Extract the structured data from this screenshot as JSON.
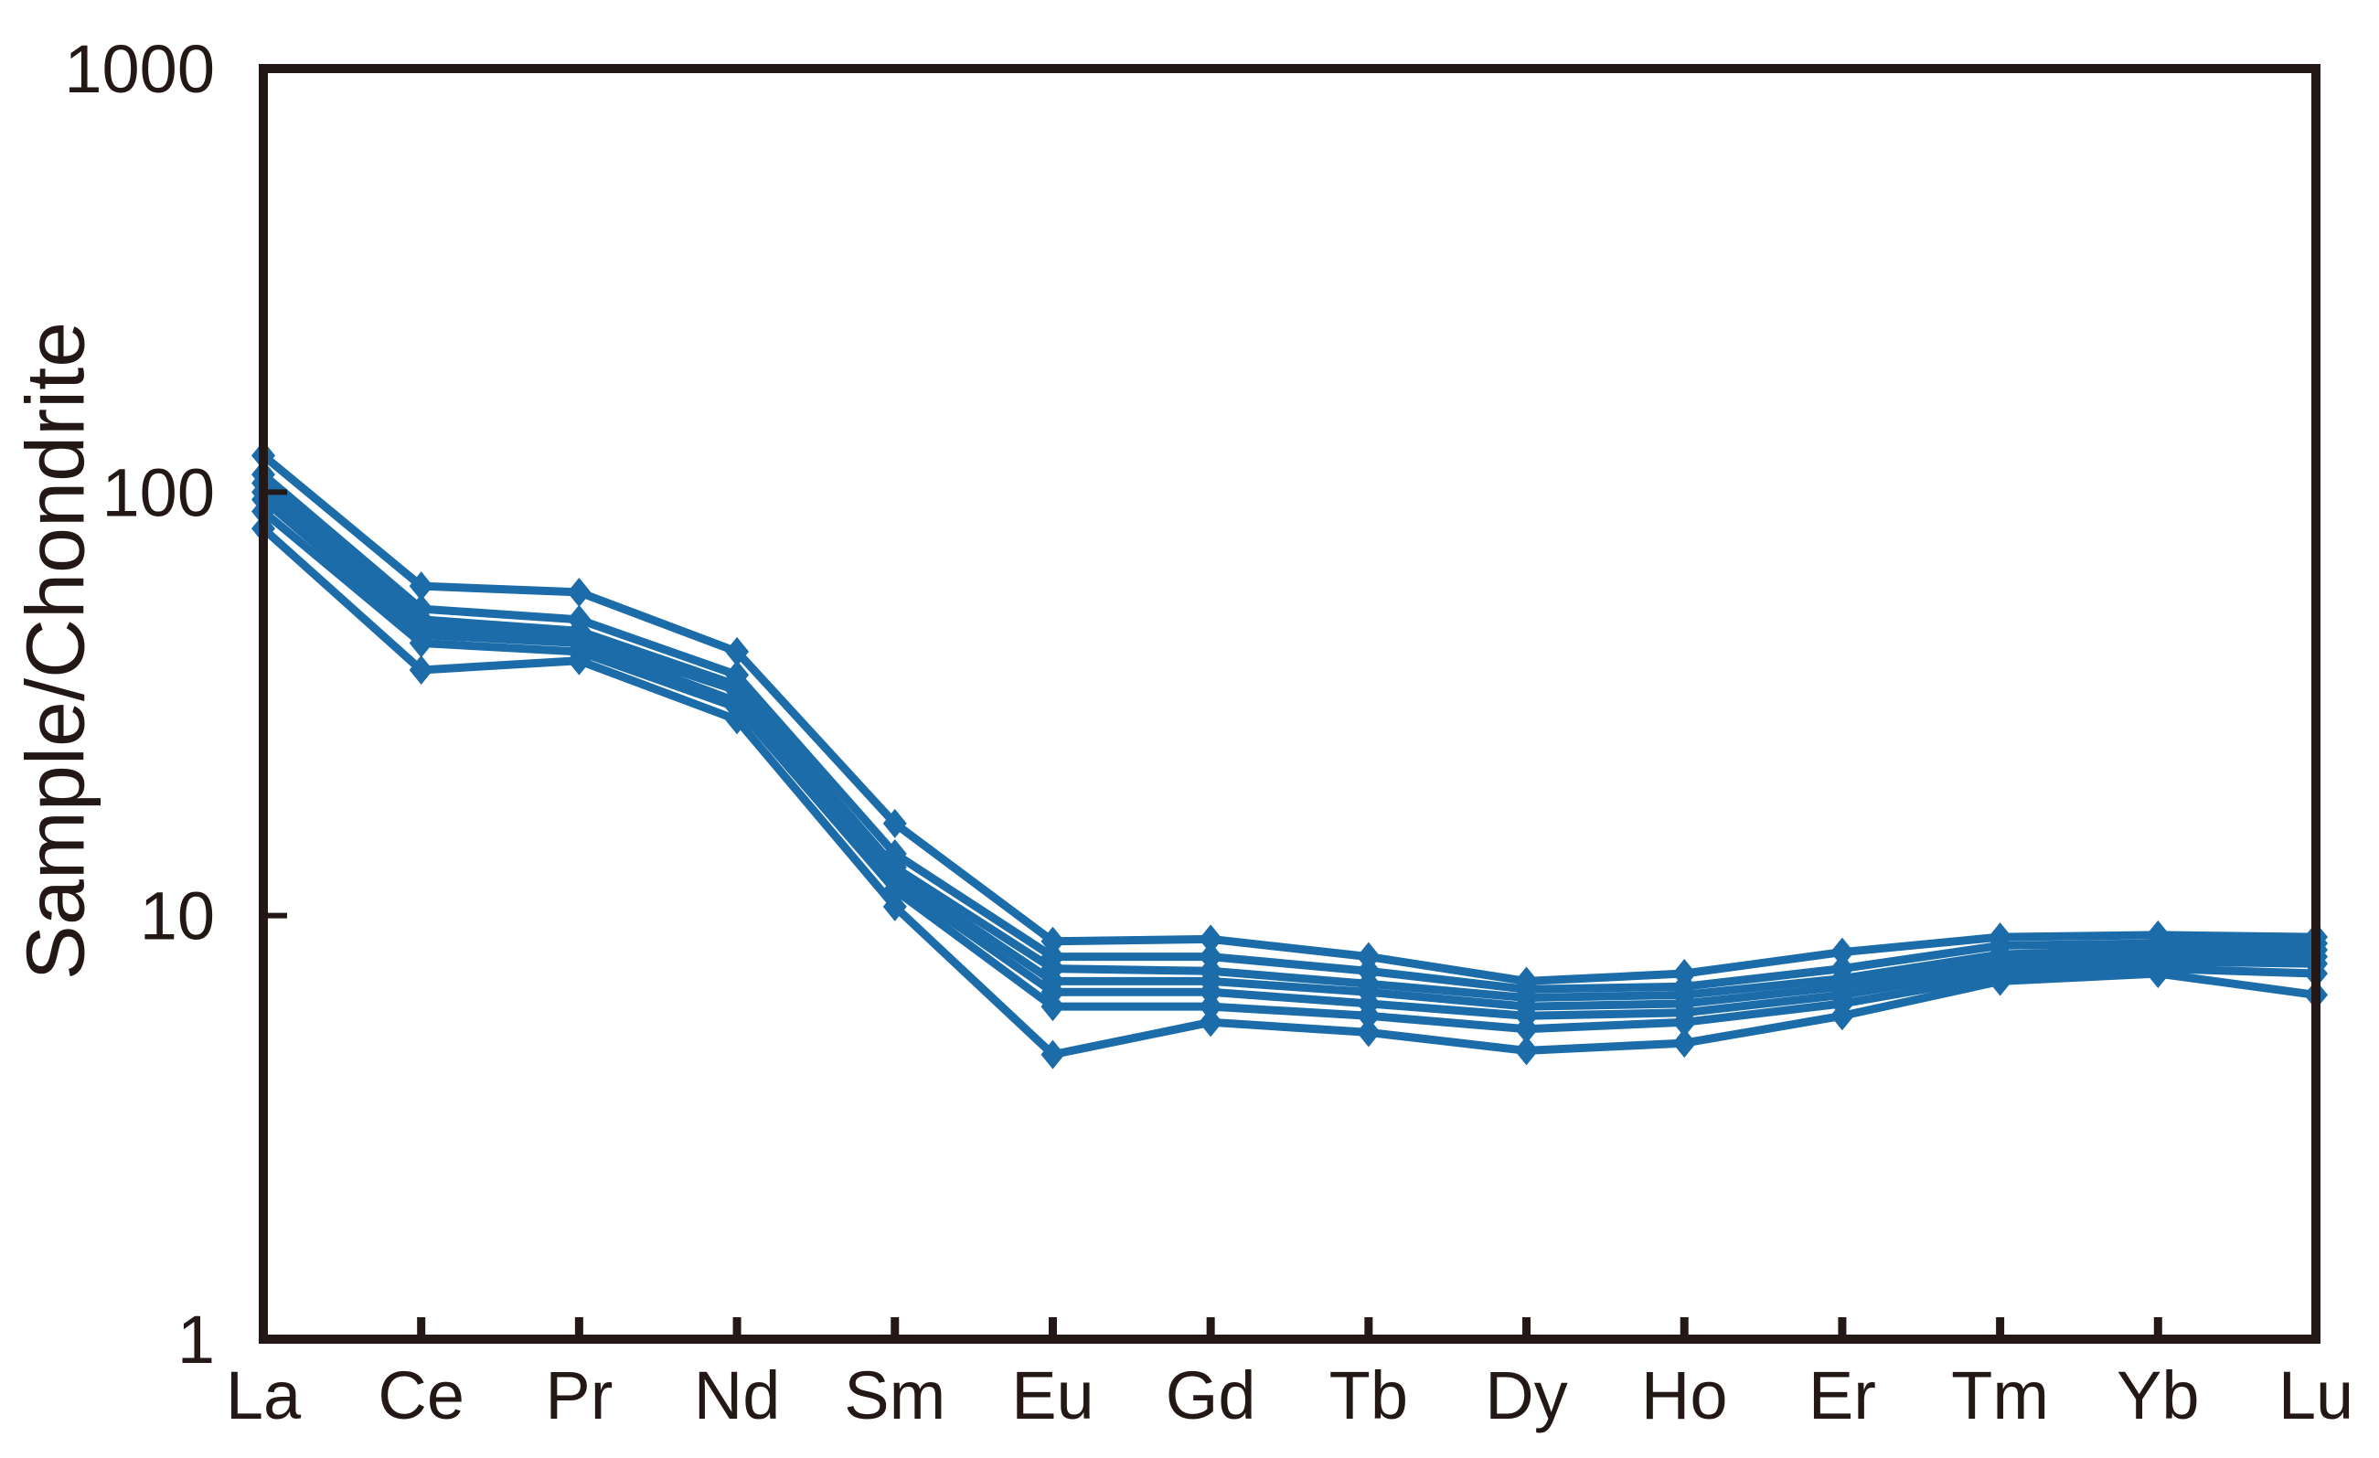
{
  "figure": {
    "background": "#ffffff"
  },
  "chart_data": {
    "type": "line",
    "title": "",
    "xlabel": "",
    "ylabel": "Sample/Chondrite",
    "yscale": "log",
    "ylim": [
      1,
      1000
    ],
    "grid": false,
    "legend_position": "none",
    "y_ticks": [
      1000,
      100,
      10,
      1
    ],
    "y_tick_labels": [
      "1000",
      "100",
      "10",
      "1"
    ],
    "categories": [
      "La",
      "Ce",
      "Pr",
      "Nd",
      "Sm",
      "Eu",
      "Gd",
      "Tb",
      "Dy",
      "Ho",
      "Er",
      "Tm",
      "Yb",
      "Lu"
    ],
    "series": [
      {
        "values": [
          122,
          60,
          58,
          42,
          16.5,
          8.7,
          8.8,
          8.0,
          7.0,
          7.3,
          8.2,
          8.9,
          9.0,
          8.9
        ]
      },
      {
        "values": [
          110,
          53,
          50,
          37,
          14.0,
          8.0,
          8.0,
          7.4,
          6.7,
          6.8,
          7.5,
          8.5,
          8.6,
          8.6
        ]
      },
      {
        "values": [
          105,
          50,
          47,
          35,
          13.0,
          7.5,
          7.4,
          6.9,
          6.4,
          6.5,
          7.1,
          8.1,
          8.3,
          8.3
        ]
      },
      {
        "values": [
          100,
          48,
          45,
          34,
          12.5,
          7.0,
          7.0,
          6.6,
          6.1,
          6.2,
          6.8,
          7.8,
          8.0,
          8.0
        ]
      },
      {
        "values": [
          96,
          46,
          44,
          32,
          12.0,
          6.6,
          6.6,
          6.2,
          5.8,
          5.9,
          6.5,
          7.5,
          7.8,
          7.7
        ]
      },
      {
        "values": [
          90,
          44,
          42,
          31,
          11.5,
          6.1,
          6.1,
          5.8,
          5.4,
          5.6,
          6.2,
          7.2,
          7.5,
          7.3
        ]
      },
      {
        "values": [
          82,
          38,
          40,
          29,
          10.5,
          4.7,
          5.6,
          5.3,
          4.8,
          5.0,
          5.8,
          7.0,
          7.3,
          6.5
        ]
      }
    ],
    "line_color": "#1b6ca8",
    "frame_color": "#231815",
    "marker": "diamond"
  }
}
